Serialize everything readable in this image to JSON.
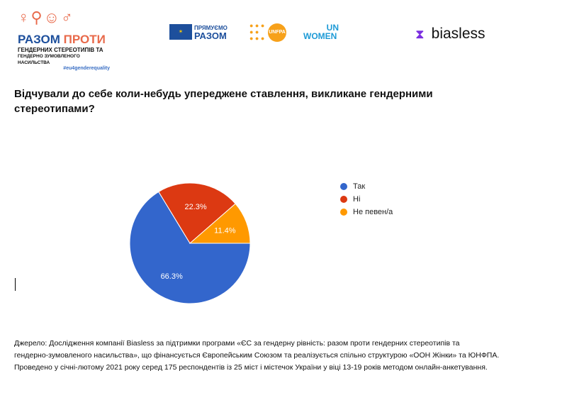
{
  "header": {
    "campaign_logo": {
      "line1a": "РАЗОМ",
      "line1b": "ПРОТИ",
      "line2": "ГЕНДЕРНИХ СТЕРЕОТИПІВ ТА",
      "line3": "ГЕНДЕРНО ЗУМОВЛЕНОГО НАСИЛЬСТВА",
      "hashtag": "#eu4genderequality"
    },
    "eu_logo": {
      "line1": "ПРЯМУЄМО",
      "line2": "РАЗОМ"
    },
    "unfpa_logo": "UNFPA",
    "unwomen_logo": {
      "line1": "UN",
      "line2": "WOMEN"
    },
    "biasless_logo": "biasless"
  },
  "chart_data": {
    "type": "pie",
    "title": "Відчували до себе коли-небудь упереджене ставлення, викликане гендерними стереотипами?",
    "categories": [
      "Так",
      "Ні",
      "Не певен/а"
    ],
    "values": [
      66.3,
      22.3,
      11.4
    ],
    "labels": [
      "66.3%",
      "22.3%",
      "11.4%"
    ],
    "colors": [
      "#3366cc",
      "#dc3912",
      "#ff9900"
    ],
    "legend_position": "right"
  },
  "source": {
    "line1": "Джерело: Дослідження компанії Biasless за підтримки програми «ЄС за гендерну рівність: разом проти гендерних стереотипів та",
    "line2": "гендерно-зумовленого насильства», що фінансується Європейським Союзом та реалізується спільно структурою «ООН Жінки» та ЮНФПА.",
    "line3": "Проведено у січні-лютому 2021 року серед 175 респондентів  із 25 міст і містечок України у віці 13-19 років методом онлайн-анкетування."
  }
}
